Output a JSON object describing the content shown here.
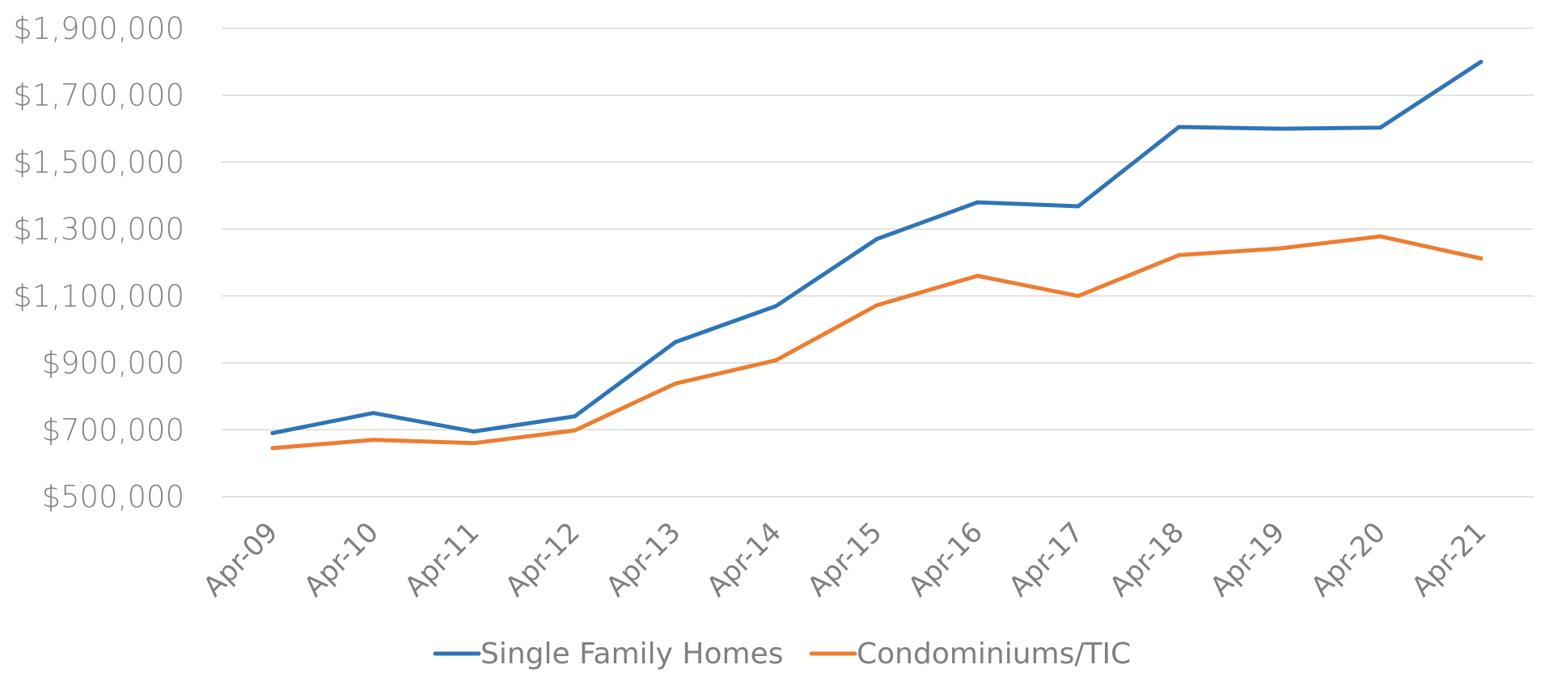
{
  "chart_data": {
    "type": "line",
    "title": "",
    "xlabel": "",
    "ylabel": "",
    "categories": [
      "Apr-09",
      "Apr-10",
      "Apr-11",
      "Apr-12",
      "Apr-13",
      "Apr-14",
      "Apr-15",
      "Apr-16",
      "Apr-17",
      "Apr-18",
      "Apr-19",
      "Apr-20",
      "Apr-21"
    ],
    "ylim": [
      500000,
      1900000
    ],
    "yticks": [
      500000,
      700000,
      900000,
      1100000,
      1300000,
      1500000,
      1700000,
      1900000
    ],
    "ytick_labels": [
      "$500,000",
      "$700,000",
      "$900,000",
      "$1,100,000",
      "$1,300,000",
      "$1,500,000",
      "$1,700,000",
      "$1,900,000"
    ],
    "grid": "horizontal",
    "legend": "bottom",
    "series": [
      {
        "name": "Single Family Homes",
        "color": "#2e75b6",
        "values": [
          690000,
          750000,
          695000,
          740000,
          962000,
          1070000,
          1270000,
          1380000,
          1368000,
          1605000,
          1600000,
          1603000,
          1800000
        ]
      },
      {
        "name": "Condominiums/TIC",
        "color": "#ed7d31",
        "values": [
          645000,
          670000,
          660000,
          698000,
          838000,
          908000,
          1072000,
          1160000,
          1100000,
          1222000,
          1242000,
          1278000,
          1212000
        ]
      }
    ]
  }
}
